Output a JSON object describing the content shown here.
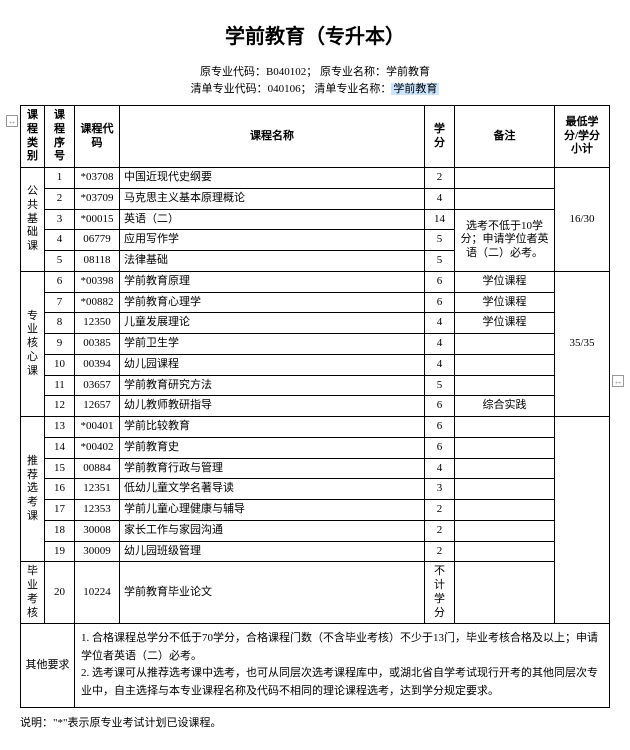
{
  "title": "学前教育（专升本）",
  "meta": {
    "line1a": "原专业代码：",
    "line1b": "B040102；",
    "line1c": "原专业名称：",
    "line1d": "学前教育",
    "line2a": "清单专业代码：",
    "line2b": "040106；",
    "line2c": "清单专业名称：",
    "line2d": "学前教育"
  },
  "headers": {
    "cat": "课程类别",
    "seq": "课程序号",
    "code": "课程代码",
    "name": "课程名称",
    "credit": "学分",
    "note": "备注",
    "total": "最低学分/学分小计"
  },
  "groups": [
    {
      "cat": "公共基础课",
      "total": "16/30",
      "rows": [
        {
          "seq": "1",
          "code": "*03708",
          "name": "中国近现代史纲要",
          "credit": "2",
          "note": ""
        },
        {
          "seq": "2",
          "code": "*03709",
          "name": "马克思主义基本原理概论",
          "credit": "4",
          "note": ""
        },
        {
          "seq": "3",
          "code": "*00015",
          "name": "英语（二）",
          "credit": "14",
          "note": "选考不低于10学分；申请学位者英语（二）必考。"
        },
        {
          "seq": "4",
          "code": "06779",
          "name": "应用写作学",
          "credit": "5",
          "note": ""
        },
        {
          "seq": "5",
          "code": "08118",
          "name": "法律基础",
          "credit": "5",
          "note": ""
        }
      ]
    },
    {
      "cat": "专业核心课",
      "total": "35/35",
      "rows": [
        {
          "seq": "6",
          "code": "*00398",
          "name": "学前教育原理",
          "credit": "6",
          "note": "学位课程"
        },
        {
          "seq": "7",
          "code": "*00882",
          "name": "学前教育心理学",
          "credit": "6",
          "note": "学位课程"
        },
        {
          "seq": "8",
          "code": "12350",
          "name": "儿童发展理论",
          "credit": "4",
          "note": "学位课程"
        },
        {
          "seq": "9",
          "code": "00385",
          "name": "学前卫生学",
          "credit": "4",
          "note": ""
        },
        {
          "seq": "10",
          "code": "00394",
          "name": "幼儿园课程",
          "credit": "4",
          "note": ""
        },
        {
          "seq": "11",
          "code": "03657",
          "name": "学前教育研究方法",
          "credit": "5",
          "note": ""
        },
        {
          "seq": "12",
          "code": "12657",
          "name": "幼儿教师教研指导",
          "credit": "6",
          "note": "综合实践"
        }
      ]
    },
    {
      "cat": "推荐选考课",
      "total": "",
      "rows": [
        {
          "seq": "13",
          "code": "*00401",
          "name": "学前比较教育",
          "credit": "6",
          "note": ""
        },
        {
          "seq": "14",
          "code": "*00402",
          "name": "学前教育史",
          "credit": "6",
          "note": ""
        },
        {
          "seq": "15",
          "code": "00884",
          "name": "学前教育行政与管理",
          "credit": "4",
          "note": ""
        },
        {
          "seq": "16",
          "code": "12351",
          "name": "低幼儿童文学名著导读",
          "credit": "3",
          "note": ""
        },
        {
          "seq": "17",
          "code": "12353",
          "name": "学前儿童心理健康与辅导",
          "credit": "2",
          "note": ""
        },
        {
          "seq": "18",
          "code": "30008",
          "name": "家长工作与家园沟通",
          "credit": "2",
          "note": ""
        },
        {
          "seq": "19",
          "code": "30009",
          "name": "幼儿园班级管理",
          "credit": "2",
          "note": ""
        }
      ]
    },
    {
      "cat": "毕业考核",
      "total": "",
      "rows": [
        {
          "seq": "20",
          "code": "10224",
          "name": "学前教育毕业论文",
          "credit": "不计学分",
          "note": ""
        }
      ]
    }
  ],
  "other_req_label": "其他要求",
  "other_req": {
    "li1": "合格课程总学分不低于70学分，合格课程门数（不含毕业考核）不少于13门，毕业考核合格及以上；申请学位者英语（二）必考。",
    "li2": "选考课可从推荐选考课中选考，也可从同层次选考课程库中，或湖北省自学考试现行开考的其他同层次专业中，自主选择与本专业课程名称及代码不相同的理论课程选考，达到学分规定要求。"
  },
  "footnote": "说明：\"*\"表示原专业考试计划已设课程。"
}
